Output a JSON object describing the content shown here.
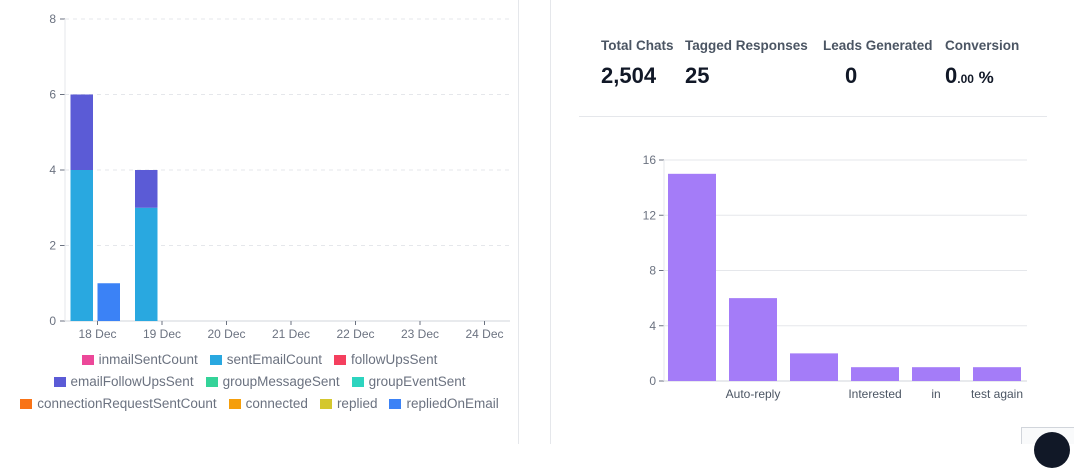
{
  "left_chart": {
    "legend": [
      {
        "label": "inmailSentCount",
        "color": "#ec4899"
      },
      {
        "label": "sentEmailCount",
        "color": "#29a8e0"
      },
      {
        "label": "followUpsSent",
        "color": "#f43f5e"
      },
      {
        "label": "emailFollowUpsSent",
        "color": "#5b5bd6"
      },
      {
        "label": "groupMessageSent",
        "color": "#34d399"
      },
      {
        "label": "groupEventSent",
        "color": "#2dd4bf"
      },
      {
        "label": "connectionRequestSentCount",
        "color": "#f97316"
      },
      {
        "label": "connected",
        "color": "#f59e0b"
      },
      {
        "label": "replied",
        "color": "#d4c72e"
      },
      {
        "label": "repliedOnEmail",
        "color": "#3b82f6"
      }
    ]
  },
  "stats": [
    {
      "label": "Total Chats",
      "value": "2,504",
      "suffix": ""
    },
    {
      "label": "Tagged Responses",
      "value": "25",
      "suffix": ""
    },
    {
      "label": "Leads Generated",
      "value": "0",
      "suffix": ""
    },
    {
      "label": "Conversion",
      "value": "0",
      "decimal": ".00",
      "suffix": " %"
    }
  ],
  "chart_data": [
    {
      "type": "bar",
      "stacked": true,
      "categories": [
        "18 Dec",
        "19 Dec",
        "20 Dec",
        "21 Dec",
        "22 Dec",
        "23 Dec",
        "24 Dec"
      ],
      "series": [
        {
          "name": "sentEmailCount",
          "color": "#29a8e0",
          "values": [
            4,
            3,
            0,
            0,
            0,
            0,
            0
          ]
        },
        {
          "name": "emailFollowUpsSent",
          "color": "#5b5bd6",
          "values": [
            2,
            1,
            0,
            0,
            0,
            0,
            0
          ]
        },
        {
          "name": "repliedOnEmail",
          "color": "#3b82f6",
          "values": [
            1,
            0,
            0,
            0,
            0,
            0,
            0
          ]
        }
      ],
      "yticks": [
        "0",
        "2",
        "4",
        "6",
        "8"
      ],
      "ylim": [
        0,
        8
      ],
      "grid": true,
      "legend": "bottom"
    },
    {
      "type": "bar",
      "categories": [
        "",
        "Auto-reply",
        "",
        "Interested",
        "in",
        "test again"
      ],
      "values": [
        15,
        6,
        2,
        1,
        1,
        1
      ],
      "color": "#a47cf8",
      "yticks": [
        "0",
        "4",
        "8",
        "12",
        "16"
      ],
      "ylim": [
        0,
        16
      ],
      "grid": true
    }
  ]
}
